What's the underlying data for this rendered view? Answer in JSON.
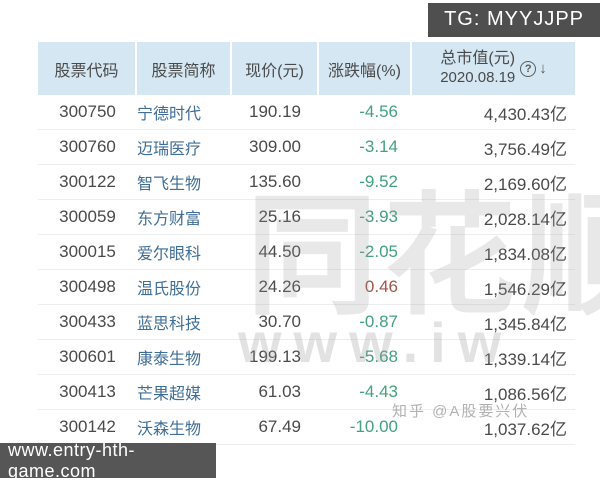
{
  "colors": {
    "header-bg": "#d5e7f2",
    "header-text": "#4a4a4a",
    "row-text": "#4a4a4a",
    "name-blue": "#3f6e96",
    "down-green": "#44a17f",
    "up-red": "#a0544b",
    "badge-bg": "#4f4f4f"
  },
  "overlays": {
    "tg_badge": "TG: MYYJJPP",
    "url_badge": "www.entry-hth-game.com",
    "watermark_large": "同花顺",
    "watermark_www": "www.iw",
    "watermark_zhihu": "知乎 @A股要兴伏"
  },
  "table": {
    "columns": [
      "股票代码",
      "股票简称",
      "现价(元)",
      "涨跌幅(%)",
      "总市值(元)"
    ],
    "mcap_date": "2020.08.19",
    "help_icon": "?",
    "sort_icon": "↓",
    "rows": [
      {
        "code": "300750",
        "name": "宁德时代",
        "price": "190.19",
        "change": "-4.56",
        "mcap": "4,430.43亿",
        "dir": "down"
      },
      {
        "code": "300760",
        "name": "迈瑞医疗",
        "price": "309.00",
        "change": "-3.14",
        "mcap": "3,756.49亿",
        "dir": "down"
      },
      {
        "code": "300122",
        "name": "智飞生物",
        "price": "135.60",
        "change": "-9.52",
        "mcap": "2,169.60亿",
        "dir": "down"
      },
      {
        "code": "300059",
        "name": "东方财富",
        "price": "25.16",
        "change": "-3.93",
        "mcap": "2,028.14亿",
        "dir": "down"
      },
      {
        "code": "300015",
        "name": "爱尔眼科",
        "price": "44.50",
        "change": "-2.05",
        "mcap": "1,834.08亿",
        "dir": "down"
      },
      {
        "code": "300498",
        "name": "温氏股份",
        "price": "24.26",
        "change": "0.46",
        "mcap": "1,546.29亿",
        "dir": "up"
      },
      {
        "code": "300433",
        "name": "蓝思科技",
        "price": "30.70",
        "change": "-0.87",
        "mcap": "1,345.84亿",
        "dir": "down"
      },
      {
        "code": "300601",
        "name": "康泰生物",
        "price": "199.13",
        "change": "-5.68",
        "mcap": "1,339.14亿",
        "dir": "down"
      },
      {
        "code": "300413",
        "name": "芒果超媒",
        "price": "61.03",
        "change": "-4.43",
        "mcap": "1,086.56亿",
        "dir": "down"
      },
      {
        "code": "300142",
        "name": "沃森生物",
        "price": "67.49",
        "change": "-10.00",
        "mcap": "1,037.62亿",
        "dir": "down"
      }
    ]
  }
}
